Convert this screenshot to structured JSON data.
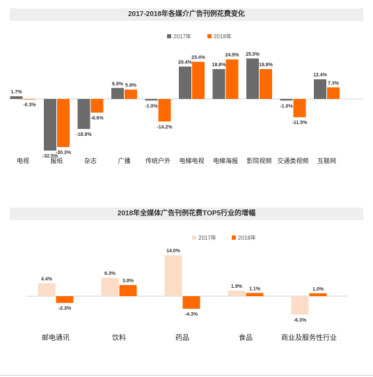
{
  "chart_data": [
    {
      "type": "bar",
      "title": "2017-2018年各媒介广告刊例花费变化",
      "categories": [
        "电视",
        "报纸",
        "杂志",
        "广播",
        "传统户外",
        "电梯电视",
        "电梯海报",
        "影院视频",
        "交通类视频",
        "互联网"
      ],
      "series": [
        {
          "name": "2017年",
          "color": "#6b6b6b",
          "values": [
            1.7,
            -32.5,
            -18.9,
            6.9,
            -1.0,
            20.4,
            18.8,
            25.5,
            -1.0,
            12.4
          ],
          "labels": [
            "1.7%",
            "-32.5%",
            "-18.9%",
            "6.9%",
            "-1.0%",
            "20.4%",
            "18.8%",
            "25.5%",
            "-1.0%",
            "12.4%"
          ]
        },
        {
          "name": "2018年",
          "color": "#ff6a00",
          "values": [
            -0.3,
            -30.3,
            -8.6,
            5.9,
            -14.2,
            23.4,
            24.9,
            18.8,
            -11.5,
            7.3
          ],
          "labels": [
            "-0.3%",
            "-30.3%",
            "-8.6%",
            "5.9%",
            "-14.2%",
            "23.4%",
            "24.9%",
            "18.8%",
            "-11.5%",
            "7.3%"
          ]
        }
      ],
      "legend": "top-right",
      "ylim": [
        -35,
        30
      ],
      "grid": false
    },
    {
      "type": "bar",
      "title": "2018年全媒体广告刊例花费TOP5行业的增幅",
      "categories": [
        "邮电通讯",
        "饮料",
        "药品",
        "食品",
        "商业及服务性行业"
      ],
      "series": [
        {
          "name": "2017年",
          "color": "#fbdcc7",
          "values": [
            4.4,
            6.3,
            14.0,
            1.9,
            -6.3
          ],
          "labels": [
            "4.4%",
            "6.3%",
            "14.0%",
            "1.9%",
            "-6.3%"
          ]
        },
        {
          "name": "2018年",
          "color": "#ff6a00",
          "values": [
            -2.3,
            3.8,
            -4.3,
            1.1,
            1.0
          ],
          "labels": [
            "-2.3%",
            "3.8%",
            "-4.3%",
            "1.1%",
            "1.0%"
          ]
        }
      ],
      "legend": "top-right",
      "ylim": [
        -8,
        15
      ],
      "grid": false
    }
  ]
}
